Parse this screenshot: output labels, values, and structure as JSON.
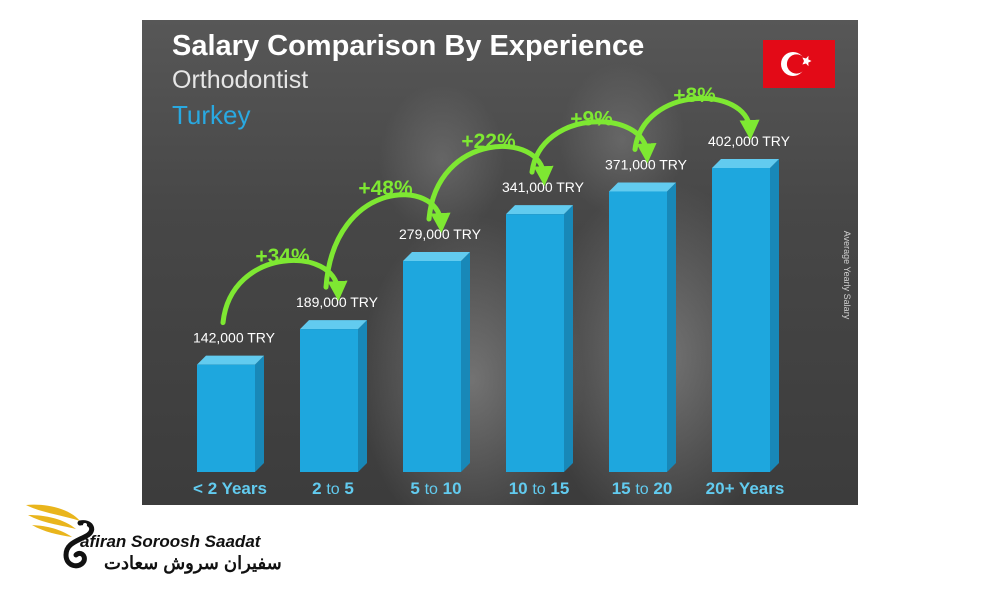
{
  "chart_data": {
    "type": "bar",
    "title": "Salary Comparison By Experience",
    "subtitle": "Orthodontist",
    "country": "Turkey",
    "ylabel": "Average Yearly Salary",
    "categories": [
      "< 2 Years",
      "2 to 5",
      "5 to 10",
      "10 to 15",
      "15 to 20",
      "20+ Years"
    ],
    "values": [
      142000,
      189000,
      279000,
      341000,
      371000,
      402000
    ],
    "value_labels": [
      "142,000 TRY",
      "189,000 TRY",
      "279,000 TRY",
      "341,000 TRY",
      "371,000 TRY",
      "402,000 TRY"
    ],
    "changes": [
      "+34%",
      "+48%",
      "+22%",
      "+9%",
      "+8%"
    ],
    "ylim": [
      0,
      402000
    ],
    "grid": false,
    "legend": "none"
  },
  "branding": {
    "logo_text": "afiran Soroosh Saadat",
    "logo_persian": "سفیران سروش سعادت"
  },
  "colors": {
    "bar_front": "#1ea7de",
    "bar_side": "#1888b8",
    "bar_top": "#62cbef",
    "value_label": "#ffffff",
    "change_label": "#7ee832",
    "country": "#29a9e1",
    "flag": "#e30a17",
    "logo_gold": "#e9b51c"
  }
}
